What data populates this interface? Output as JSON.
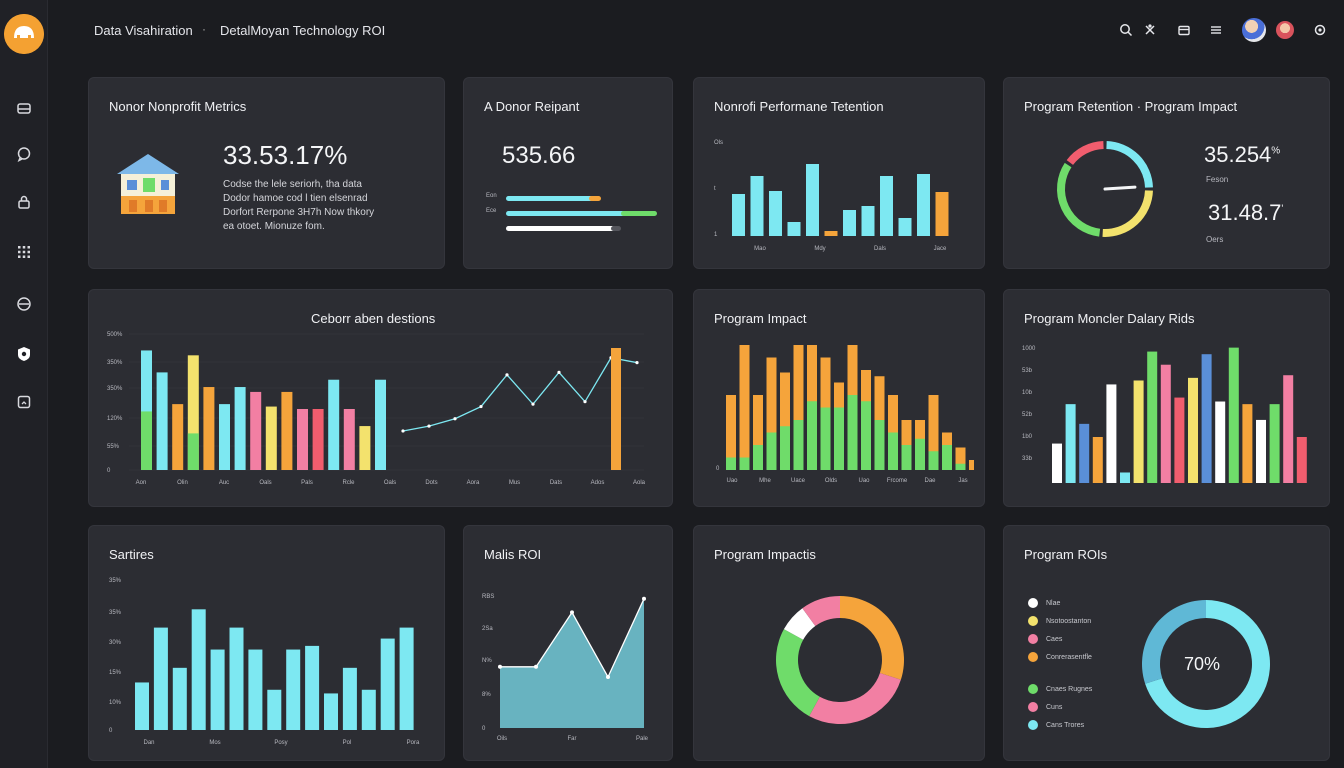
{
  "header": {
    "breadcrumb_1": "Data Visahiration",
    "breadcrumb_sep": "·",
    "breadcrumb_2": "DetalMoyan Technology ROI"
  },
  "colors": {
    "cyan": "#7de8f2",
    "green": "#6fdc6a",
    "orange": "#f5a43b",
    "pink": "#f27fa3",
    "yellow": "#f3e26d",
    "red": "#f15d6e",
    "blue": "#5a8fd8",
    "white": "#ffffff"
  },
  "cards": {
    "donor_metrics": {
      "title": "Nonor Nonprofit Metrics",
      "value": "33.53.17%",
      "desc_1": "Codse the lele seriorh, tha data",
      "desc_2": "Dodor hamoe cod l tien elsenrad",
      "desc_3": "Dorfort Rerpone 3H7h Now thkory",
      "desc_4": "ea otoet. Mionuze fom."
    },
    "donor_report": {
      "title": "A Donor Reipant",
      "value": "535.66",
      "bar_labels": [
        "Eon",
        "Ece",
        ""
      ],
      "bars": [
        {
          "fill": 0.62,
          "color": "#7de8f2",
          "accent": "#f5a43b",
          "accent_len": 0.15
        },
        {
          "fill": 0.85,
          "color": "#7de8f2",
          "accent": "#6fdc6a",
          "accent_len": 0.45
        },
        {
          "fill": 0.78,
          "color": "#ffffff",
          "accent": "#55565d",
          "accent_len": 0.12
        }
      ]
    },
    "performance": {
      "title": "Nonrofi Performane Tetention",
      "y_ticks": [
        "Ols",
        "t",
        "1"
      ],
      "x_labels": [
        "Mao",
        "Mdy",
        "Dals",
        "Jace"
      ]
    },
    "retention": {
      "title": "Program Retention · Program Impact",
      "value_1": "35.254",
      "unit_1": "%",
      "label_1": "Feson",
      "value_2": "31.48.7",
      "unit_2": "'",
      "label_2": "Oers",
      "gauge_needle": 0.72
    },
    "donations": {
      "title": "Ceborr aben destions",
      "y_ticks": [
        "500%",
        "350%",
        "350%",
        "120%",
        "55%",
        "0"
      ],
      "x_labels": [
        "Aon",
        "Olin",
        "Auc",
        "Oals",
        "Pals",
        "Rcle",
        "Oals",
        "Dots",
        "Aora",
        "Mus",
        "Dats",
        "Ados",
        "Aola"
      ]
    },
    "program_impact": {
      "title": "Program Impact",
      "y_tick": "0",
      "x_labels": [
        "Uao",
        "Mhe",
        "Uace",
        "Olds",
        "Uao",
        "Frcome",
        "Dae",
        "Jas"
      ]
    },
    "monthly_delivery": {
      "title": "Program Moncler Dalary Rids",
      "y_ticks": [
        "1000",
        "53b",
        "10b",
        "52b",
        "1b0",
        "33b"
      ]
    },
    "sales": {
      "title": "Sartires",
      "y_ticks": [
        "35%",
        "35%",
        "30%",
        "15%",
        "10%",
        "0"
      ],
      "x_labels": [
        "Dan",
        "Mos",
        "Posy",
        "Pol",
        "Pora"
      ]
    },
    "mais_roi": {
      "title": "Malis ROI",
      "y_ticks": [
        "RBS",
        "2Sa",
        "N%",
        "8%",
        "0"
      ],
      "x_labels": [
        "Oils",
        "Far",
        "Pale"
      ]
    },
    "program_impacts": {
      "title": "Program Impactis"
    },
    "program_rois": {
      "title": "Program ROIs",
      "center_value": "70%",
      "legend": [
        {
          "label": "Nlae",
          "color": "#ffffff"
        },
        {
          "label": "Nsotoostanton",
          "color": "#f3e26d"
        },
        {
          "label": "Caes",
          "color": "#f27fa3"
        },
        {
          "label": "Conrerasentfle",
          "color": "#f5a43b"
        },
        {
          "label": "Cnaes Rugnes",
          "color": "#6fdc6a"
        },
        {
          "label": "Cuns",
          "color": "#f27fa3"
        },
        {
          "label": "Cans Trores",
          "color": "#7de8f2"
        }
      ]
    }
  },
  "chart_data": [
    {
      "type": "bar",
      "id": "performance",
      "categories": [
        "1",
        "2",
        "3",
        "4",
        "5",
        "6",
        "7",
        "8",
        "9",
        "10",
        "11",
        "12"
      ],
      "values": [
        42,
        60,
        45,
        14,
        72,
        5,
        26,
        30,
        60,
        18,
        62,
        44
      ],
      "colors": [
        "#7de8f2",
        "#7de8f2",
        "#7de8f2",
        "#7de8f2",
        "#7de8f2",
        "#f5a43b",
        "#7de8f2",
        "#7de8f2",
        "#7de8f2",
        "#7de8f2",
        "#7de8f2",
        "#f5a43b"
      ]
    },
    {
      "type": "bar",
      "id": "donations_bars",
      "ylim": [
        0,
        500
      ],
      "values": [
        {
          "total": 490,
          "green": 240
        },
        {
          "total": 400,
          "green": 0
        },
        {
          "total": 270,
          "color": "#f5a43b"
        },
        {
          "total": 470,
          "color": "#f3e26d",
          "green": 150
        },
        {
          "total": 340,
          "color": "#f5a43b"
        },
        {
          "total": 270,
          "color": "#7de8f2"
        },
        {
          "total": 340,
          "color": "#7de8f2"
        },
        {
          "total": 320,
          "color": "#f27fa3"
        },
        {
          "total": 260,
          "color": "#f3e26d"
        },
        {
          "total": 320,
          "color": "#f5a43b"
        },
        {
          "total": 250,
          "color": "#f27fa3"
        },
        {
          "total": 250,
          "color": "#f15d6e"
        },
        {
          "total": 370,
          "color": "#7de8f2"
        },
        {
          "total": 250,
          "color": "#f27fa3"
        },
        {
          "total": 180,
          "color": "#f3e26d"
        },
        {
          "total": 370,
          "color": "#7de8f2"
        }
      ],
      "line": [
        160,
        180,
        210,
        260,
        390,
        270,
        400,
        280,
        460,
        440
      ],
      "last_bar": {
        "total": 500,
        "color": "#f5a43b"
      }
    },
    {
      "type": "bar",
      "id": "program_impact",
      "values": [
        {
          "total": 60,
          "green": 10
        },
        {
          "total": 100,
          "green": 10
        },
        {
          "total": 60,
          "green": 20
        },
        {
          "total": 90,
          "green": 30
        },
        {
          "total": 78,
          "green": 35
        },
        {
          "total": 100,
          "green": 40
        },
        {
          "total": 100,
          "green": 55
        },
        {
          "total": 90,
          "green": 50
        },
        {
          "total": 70,
          "green": 50
        },
        {
          "total": 100,
          "green": 60
        },
        {
          "total": 80,
          "green": 55
        },
        {
          "total": 75,
          "green": 40
        },
        {
          "total": 60,
          "green": 30
        },
        {
          "total": 40,
          "green": 20
        },
        {
          "total": 40,
          "green": 25
        },
        {
          "total": 60,
          "green": 15
        },
        {
          "total": 30,
          "green": 20
        },
        {
          "total": 18,
          "green": 5
        },
        {
          "total": 8,
          "green": 0
        }
      ]
    },
    {
      "type": "bar",
      "id": "monthly_delivery",
      "values": [
        30,
        60,
        45,
        35,
        75,
        8,
        78,
        100,
        90,
        65,
        80,
        98,
        62,
        103,
        60,
        48,
        60,
        82,
        35
      ],
      "colors": [
        "#ffffff",
        "#7de8f2",
        "#5a8fd8",
        "#f5a43b",
        "#ffffff",
        "#7de8f2",
        "#f3e26d",
        "#6fdc6a",
        "#f27fa3",
        "#f15d6e",
        "#f3e26d",
        "#5a8fd8",
        "#ffffff",
        "#6fdc6a",
        "#f5a43b",
        "#ffffff",
        "#6fdc6a",
        "#f27fa3",
        "#f15d6e"
      ]
    },
    {
      "type": "bar",
      "id": "sales",
      "ylim": [
        0,
        35
      ],
      "values": [
        13,
        28,
        17,
        33,
        22,
        28,
        22,
        11,
        22,
        23,
        10,
        17,
        11,
        25,
        28
      ],
      "second": [
        null,
        null,
        null,
        null,
        null,
        null,
        22,
        null,
        17,
        null,
        null,
        null,
        null,
        null,
        29
      ]
    },
    {
      "type": "area",
      "id": "mais_roi",
      "x": [
        "Oils",
        "",
        "Far",
        "",
        "Pale"
      ],
      "y": [
        18,
        18,
        34,
        15,
        38
      ]
    },
    {
      "type": "pie",
      "id": "program_impacts",
      "values": [
        30,
        28,
        25,
        7,
        10
      ],
      "colors": [
        "#f5a43b",
        "#f27fa3",
        "#6fdc6a",
        "#ffffff",
        "#f27fa3"
      ]
    },
    {
      "type": "pie",
      "id": "program_rois",
      "values": [
        70,
        30
      ],
      "colors": [
        "#7de8f2",
        "#7de8f2"
      ]
    }
  ]
}
